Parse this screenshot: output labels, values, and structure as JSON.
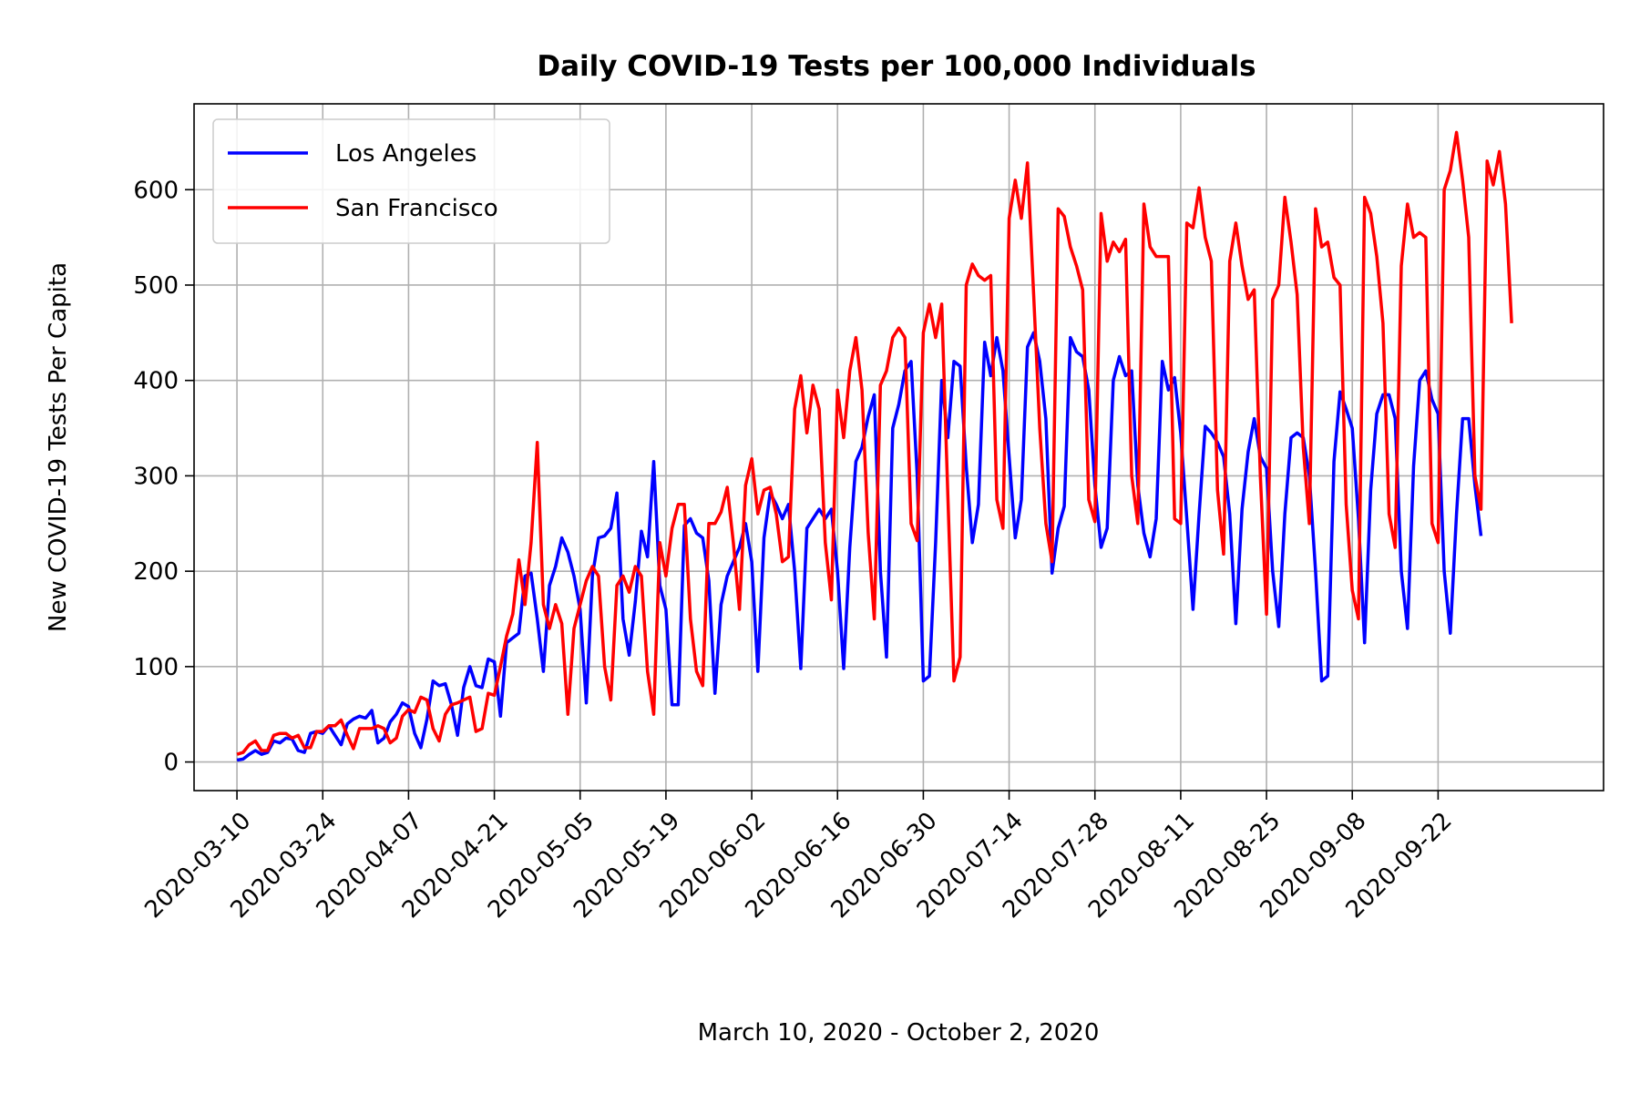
{
  "chart_data": {
    "type": "line",
    "title": "Daily COVID-19 Tests per 100,000 Individuals",
    "xlabel": "March 10, 2020 - October 2, 2020",
    "ylabel": "New COVID-19 Tests Per Capita",
    "x_start": "2020-03-10",
    "x_end": "2020-10-02",
    "xlim": [
      "2020-03-03",
      "2020-10-19"
    ],
    "ylim": [
      -30,
      690
    ],
    "x_ticks": [
      "2020-03-10",
      "2020-03-24",
      "2020-04-07",
      "2020-04-21",
      "2020-05-05",
      "2020-05-19",
      "2020-06-02",
      "2020-06-16",
      "2020-06-30",
      "2020-07-14",
      "2020-07-28",
      "2020-08-11",
      "2020-08-25",
      "2020-09-08",
      "2020-09-22"
    ],
    "y_ticks": [
      0,
      100,
      200,
      300,
      400,
      500,
      600
    ],
    "grid": true,
    "legend_position": "upper-left",
    "series": [
      {
        "name": "Los Angeles",
        "color": "#0000ff",
        "values": [
          2,
          3,
          8,
          12,
          8,
          10,
          22,
          20,
          25,
          24,
          12,
          10,
          30,
          32,
          30,
          38,
          28,
          18,
          40,
          45,
          48,
          46,
          54,
          20,
          25,
          42,
          50,
          62,
          58,
          30,
          15,
          45,
          85,
          80,
          82,
          60,
          28,
          78,
          100,
          80,
          78,
          108,
          105,
          48,
          125,
          130,
          135,
          195,
          198,
          150,
          95,
          185,
          205,
          235,
          220,
          195,
          160,
          62,
          195,
          235,
          237,
          245,
          282,
          150,
          112,
          168,
          242,
          215,
          315,
          185,
          160,
          60,
          60,
          248,
          255,
          240,
          235,
          190,
          72,
          165,
          195,
          210,
          225,
          250,
          210,
          95,
          235,
          282,
          270,
          255,
          270,
          200,
          98,
          245,
          255,
          265,
          255,
          265,
          200,
          98,
          225,
          315,
          330,
          362,
          385,
          200,
          110,
          350,
          375,
          410,
          420,
          300,
          85,
          90,
          230,
          400,
          340,
          420,
          415,
          310,
          230,
          270,
          440,
          405,
          445,
          410,
          320,
          235,
          275,
          435,
          450,
          420,
          360,
          198,
          245,
          268,
          445,
          430,
          425,
          390,
          290,
          225,
          245,
          400,
          425,
          405,
          410,
          290,
          240,
          215,
          255,
          420,
          390,
          403,
          345,
          255,
          160,
          260,
          352,
          345,
          335,
          320,
          260,
          145,
          265,
          325,
          360,
          320,
          308,
          200,
          142,
          260,
          340,
          345,
          340,
          300,
          200,
          85,
          90,
          315,
          388,
          370,
          350,
          255,
          125,
          285,
          365,
          385,
          385,
          360,
          200,
          140,
          310,
          400,
          410,
          380,
          365,
          200,
          135,
          260,
          360,
          360,
          290,
          237
        ]
      },
      {
        "name": "San Francisco",
        "color": "#ff0000",
        "values": [
          8,
          10,
          18,
          22,
          12,
          12,
          28,
          30,
          30,
          25,
          28,
          15,
          15,
          32,
          32,
          38,
          38,
          44,
          28,
          14,
          35,
          35,
          35,
          38,
          35,
          20,
          25,
          48,
          55,
          52,
          68,
          65,
          35,
          22,
          50,
          60,
          62,
          65,
          68,
          32,
          35,
          72,
          70,
          100,
          132,
          155,
          212,
          165,
          230,
          335,
          165,
          140,
          165,
          145,
          50,
          140,
          165,
          190,
          205,
          195,
          100,
          65,
          185,
          195,
          178,
          205,
          195,
          95,
          50,
          230,
          195,
          245,
          270,
          270,
          150,
          95,
          80,
          250,
          250,
          262,
          288,
          230,
          160,
          290,
          318,
          260,
          285,
          288,
          260,
          210,
          215,
          370,
          405,
          345,
          395,
          370,
          230,
          170,
          390,
          340,
          410,
          445,
          390,
          240,
          150,
          395,
          410,
          445,
          455,
          445,
          250,
          232,
          450,
          480,
          445,
          480,
          280,
          85,
          110,
          500,
          522,
          510,
          505,
          510,
          275,
          245,
          570,
          610,
          570,
          628,
          490,
          350,
          250,
          210,
          580,
          572,
          540,
          520,
          495,
          275,
          252,
          575,
          525,
          545,
          535,
          548,
          300,
          250,
          585,
          540,
          530,
          530,
          530,
          255,
          250,
          565,
          560,
          602,
          550,
          525,
          285,
          218,
          525,
          565,
          520,
          485,
          495,
          300,
          155,
          485,
          500,
          592,
          545,
          490,
          330,
          250,
          580,
          540,
          545,
          508,
          500,
          270,
          180,
          150,
          592,
          575,
          530,
          460,
          260,
          225,
          520,
          585,
          550,
          555,
          550,
          250,
          230,
          600,
          620,
          660,
          610,
          550,
          300,
          265,
          630,
          605,
          640,
          585,
          460
        ]
      }
    ]
  }
}
